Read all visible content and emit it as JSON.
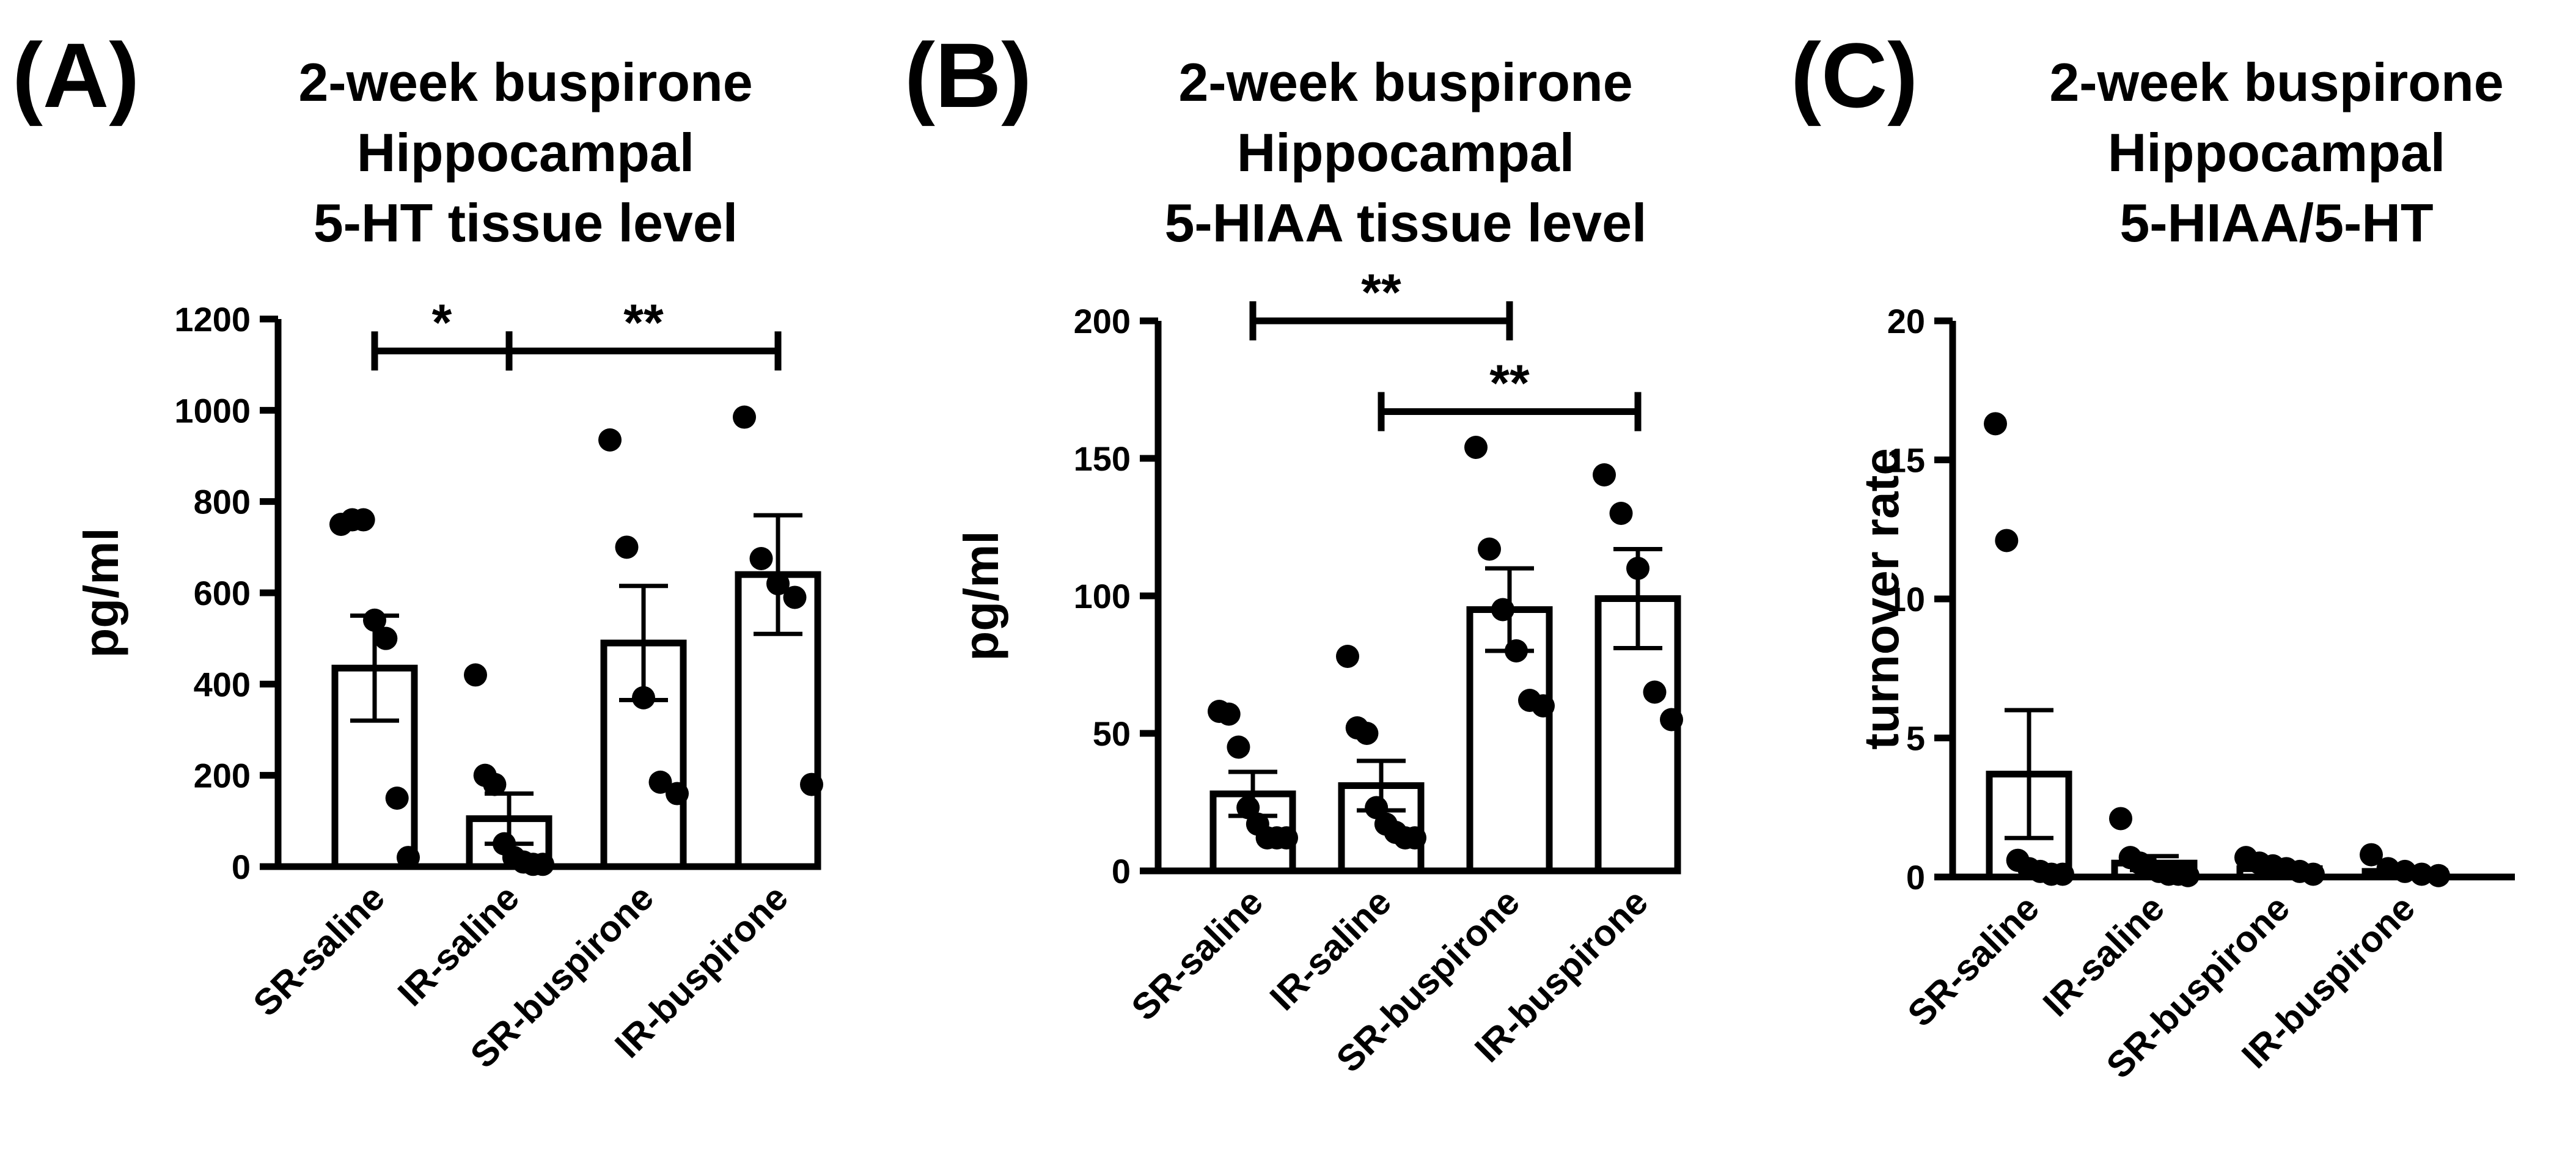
{
  "chart_data": [
    {
      "panel": "(A)",
      "type": "bar",
      "title": [
        "2-week buspirone",
        "Hippocampal",
        "5-HT tissue level"
      ],
      "ylabel": "pg/ml",
      "ylim": [
        0,
        1200
      ],
      "yticks": [
        0,
        200,
        400,
        600,
        800,
        1000,
        1200
      ],
      "categories": [
        "SR-saline",
        "IR-saline",
        "SR-buspirone",
        "IR-buspirone"
      ],
      "means": [
        435,
        105,
        490,
        640
      ],
      "sem": [
        115,
        55,
        125,
        130
      ],
      "points": [
        [
          750,
          760,
          760,
          540,
          500,
          150,
          20
        ],
        [
          420,
          200,
          180,
          50,
          20,
          10,
          5,
          5
        ],
        [
          935,
          700,
          370,
          185,
          160
        ],
        [
          985,
          675,
          620,
          590,
          180
        ]
      ],
      "significance": [
        {
          "from": 0,
          "to": 1,
          "label": "*",
          "y": 1130
        },
        {
          "from": 1,
          "to": 3,
          "label": "**",
          "y": 1130
        }
      ]
    },
    {
      "panel": "(B)",
      "type": "bar",
      "title": [
        "2-week buspirone",
        "Hippocampal",
        "5-HIAA tissue level"
      ],
      "ylabel": "pg/ml",
      "ylim": [
        0,
        200
      ],
      "yticks": [
        0,
        50,
        100,
        150,
        200
      ],
      "categories": [
        "SR-saline",
        "IR-saline",
        "SR-buspirone",
        "IR-buspirone"
      ],
      "means": [
        28,
        31,
        95,
        99
      ],
      "sem": [
        8,
        9,
        15,
        18
      ],
      "points": [
        [
          58,
          57,
          45,
          23,
          17,
          12,
          12,
          12
        ],
        [
          78,
          52,
          50,
          23,
          17,
          14,
          12,
          12
        ],
        [
          154,
          117,
          95,
          80,
          62,
          60
        ],
        [
          144,
          130,
          110,
          65,
          55
        ]
      ],
      "significance": [
        {
          "from": 0,
          "to": 2,
          "label": "**",
          "y": 200
        },
        {
          "from": 1,
          "to": 3,
          "label": "**",
          "y": 167
        }
      ]
    },
    {
      "panel": "(C)",
      "type": "bar",
      "title": [
        "2-week buspirone",
        "Hippocampal",
        "5-HIAA/5-HT"
      ],
      "ylabel": "turnover rate",
      "ylim": [
        0,
        20
      ],
      "yticks": [
        0,
        5,
        10,
        15,
        20
      ],
      "categories": [
        "SR-saline",
        "IR-saline",
        "SR-buspirone",
        "IR-buspirone"
      ],
      "means": [
        3.7,
        0.5,
        0.3,
        0.2
      ],
      "sem": [
        2.3,
        0.25,
        0.1,
        0.1
      ],
      "points": [
        [
          16.3,
          12.1,
          0.6,
          0.3,
          0.2,
          0.1,
          0.1
        ],
        [
          2.1,
          0.7,
          0.5,
          0.3,
          0.2,
          0.1,
          0.1,
          0.05
        ],
        [
          0.7,
          0.5,
          0.4,
          0.3,
          0.2,
          0.1
        ],
        [
          0.8,
          0.3,
          0.2,
          0.1,
          0.05
        ]
      ],
      "significance": []
    }
  ]
}
